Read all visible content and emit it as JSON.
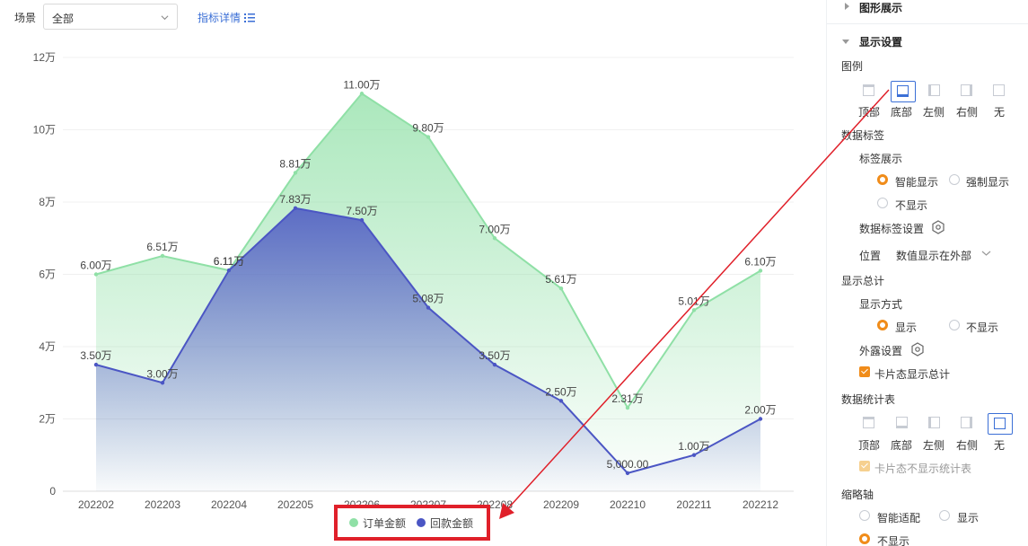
{
  "filter": {
    "scene_label": "场景",
    "scene_value": "全部",
    "detail_link": "指标详情"
  },
  "chart_data": {
    "type": "area",
    "categories": [
      "202202",
      "202203",
      "202204",
      "202205",
      "202206",
      "202207",
      "202208",
      "202209",
      "202210",
      "202211",
      "202212"
    ],
    "series": [
      {
        "name": "订单金额",
        "color": "#8fe0a6",
        "values": [
          60000,
          65100,
          61100,
          88100,
          110000,
          98000,
          70000,
          56100,
          23100,
          50100,
          61000
        ],
        "labels": [
          "6.00万",
          "6.51万",
          "6.11万",
          "8.81万",
          "11.00万",
          "9.80万",
          "7.00万",
          "5.61万",
          "2.31万",
          "5.01万",
          "6.10万"
        ]
      },
      {
        "name": "回款金额",
        "color": "#4b56c4",
        "values": [
          35000,
          30000,
          61100,
          78300,
          75000,
          50800,
          35000,
          25000,
          5000,
          10000,
          20000
        ],
        "labels": [
          "3.50万",
          "3.00万",
          "6.11万",
          "7.83万",
          "7.50万",
          "5.08万",
          "3.50万",
          "2.50万",
          "5,000.00",
          "1.00万",
          "2.00万"
        ]
      }
    ],
    "ylim": [
      0,
      120000
    ],
    "yticks": [
      0,
      20000,
      40000,
      60000,
      80000,
      100000,
      120000
    ],
    "ytick_labels": [
      "0",
      "2万",
      "4万",
      "6万",
      "8万",
      "10万",
      "12万"
    ],
    "grid": true,
    "legend_position": "bottom"
  },
  "panel": {
    "graph_display": "图形展示",
    "display_settings": "显示设置",
    "legend_title": "图例",
    "legend_options": [
      "顶部",
      "底部",
      "左侧",
      "右侧",
      "无"
    ],
    "legend_selected": "底部",
    "data_label_title": "数据标签",
    "label_display_title": "标签展示",
    "label_opt_smart": "智能显示",
    "label_opt_force": "强制显示",
    "label_opt_none": "不显示",
    "data_label_settings": "数据标签设置",
    "position_label": "位置",
    "position_value": "数值显示在外部",
    "total_title": "显示总计",
    "display_mode": "显示方式",
    "total_show": "显示",
    "total_hide": "不显示",
    "expose_settings": "外露设置",
    "card_total": "卡片态显示总计",
    "stat_table_title": "数据统计表",
    "stat_options": [
      "顶部",
      "底部",
      "左侧",
      "右侧",
      "无"
    ],
    "stat_selected": "无",
    "card_no_stat": "卡片态不显示统计表",
    "axis_title": "缩略轴",
    "axis_smart": "智能适配",
    "axis_show": "显示",
    "axis_hide": "不显示"
  }
}
